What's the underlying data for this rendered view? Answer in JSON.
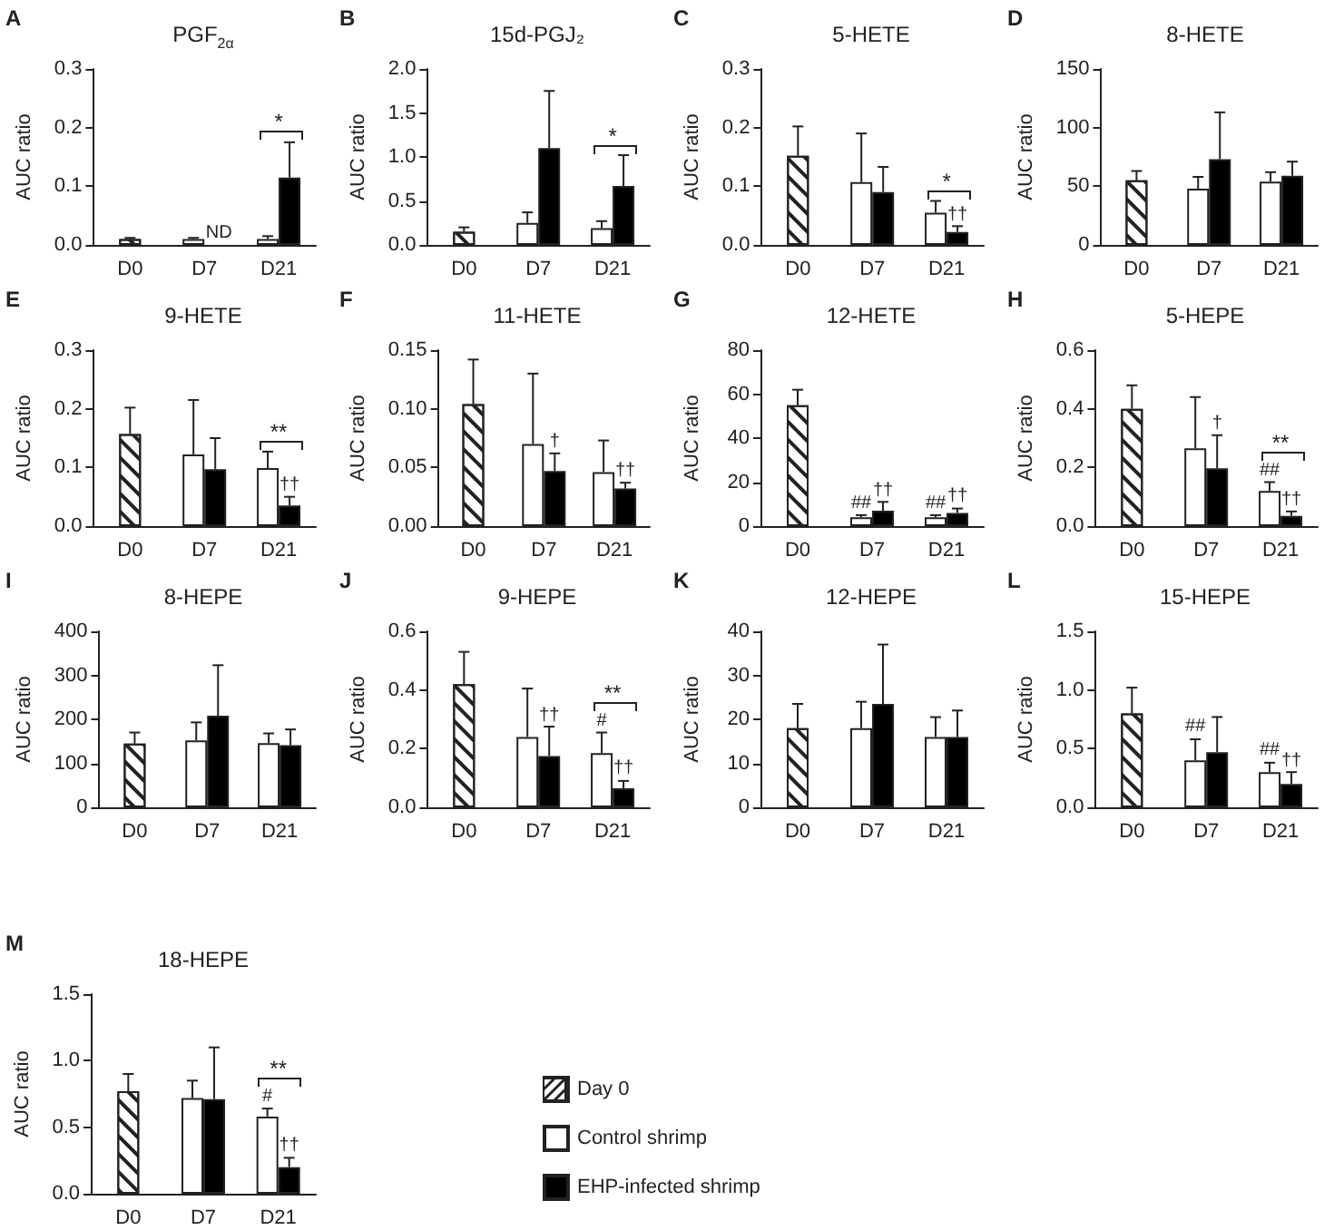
{
  "chart_data": [
    {
      "type": "bar",
      "title": "PGF$_{2α}$",
      "ylabel": "AUC ratio",
      "annotations": [
        "A",
        "*"
      ],
      "categories": [
        "D0",
        "D7",
        "D21"
      ],
      "ylim": [
        0,
        0.3
      ],
      "yticks": [
        {
          "value": 0,
          "label": "0.0"
        },
        0.1,
        0.2,
        0.3
      ],
      "series": [
        {
          "color": "#ffffff",
          "values": [
            0.01,
            null,
            null
          ],
          "errors": [
            [
              0.01,
              0.012
            ],
            null,
            null
          ]
        },
        {
          "color": "#ffffff",
          "values": [
            null,
            0.01,
            0.01
          ],
          "errors": [
            null,
            [
              0.01,
              0.012
            ],
            [
              0.01,
              0.015
            ]
          ]
        },
        {
          "color": "#000000",
          "values": [
            null,
            null,
            0.115
          ],
          "errors": [
            null,
            null,
            [
              0.115,
              0.175
            ]
          ],
          "value_labels": [
            null,
            "ND",
            null
          ]
        }
      ]
    },
    {
      "type": "bar",
      "title": "15d-PGJ₂",
      "ylabel": "AUC ratio",
      "annotations": [
        "B",
        "*"
      ],
      "categories": [
        "D0",
        "D7",
        "D21"
      ],
      "ylim": [
        0,
        2
      ],
      "yticks": [
        {
          "value": 0,
          "label": "0.0"
        },
        0.5,
        {
          "value": 1,
          "label": "1.0"
        },
        1.5,
        {
          "value": 2,
          "label": "2.0"
        }
      ],
      "series": [
        {
          "color": "#ffffff",
          "values": [
            0.15,
            null,
            null
          ],
          "errors": [
            [
              0.15,
              0.2
            ],
            null,
            null
          ]
        },
        {
          "color": "#ffffff",
          "values": [
            null,
            0.25,
            0.19
          ],
          "errors": [
            null,
            [
              0.25,
              0.37
            ],
            [
              0.19,
              0.27
            ]
          ]
        },
        {
          "color": "#000000",
          "values": [
            null,
            1.1,
            0.67
          ],
          "errors": [
            null,
            [
              1.1,
              1.75
            ],
            [
              0.67,
              1.02
            ]
          ]
        }
      ]
    },
    {
      "type": "bar",
      "title": "5-HETE",
      "ylabel": "AUC ratio",
      "annotations": [
        "C",
        "*"
      ],
      "categories": [
        "D0",
        "D7",
        "D21"
      ],
      "ylim": [
        0,
        0.3
      ],
      "yticks": [
        {
          "value": 0,
          "label": "0.0"
        },
        0.1,
        0.2,
        0.3
      ],
      "series": [
        {
          "color": "#ffffff",
          "values": [
            0.152,
            null,
            null
          ],
          "errors": [
            [
              0.152,
              0.202
            ],
            null,
            null
          ]
        },
        {
          "color": "#ffffff",
          "values": [
            null,
            0.107,
            0.055
          ],
          "errors": [
            null,
            [
              0.107,
              0.19
            ],
            [
              0.055,
              0.075
            ]
          ]
        },
        {
          "color": "#000000",
          "values": [
            null,
            0.09,
            0.022
          ],
          "errors": [
            null,
            [
              0.09,
              0.133
            ],
            [
              0.022,
              0.032
            ]
          ],
          "value_labels": [
            null,
            null,
            "††"
          ]
        }
      ]
    },
    {
      "type": "bar",
      "title": "8-HETE",
      "ylabel": "AUC ratio",
      "annotations": [
        "D"
      ],
      "categories": [
        "D0",
        "D7",
        "D21"
      ],
      "ylim": [
        0,
        150
      ],
      "yticks": [
        0,
        50,
        100,
        150
      ],
      "series": [
        {
          "color": "#ffffff",
          "values": [
            55,
            null,
            null
          ],
          "errors": [
            [
              55,
              63
            ],
            null,
            null
          ]
        },
        {
          "color": "#ffffff",
          "values": [
            null,
            48,
            54
          ],
          "errors": [
            null,
            [
              48,
              58
            ],
            [
              54,
              62
            ]
          ]
        },
        {
          "color": "#000000",
          "values": [
            null,
            73,
            59
          ],
          "errors": [
            null,
            [
              73,
              113
            ],
            [
              59,
              71
            ]
          ]
        }
      ]
    },
    {
      "type": "bar",
      "title": "9-HETE",
      "ylabel": "AUC ratio",
      "annotations": [
        "E",
        "**"
      ],
      "categories": [
        "D0",
        "D7",
        "D21"
      ],
      "ylim": [
        0,
        0.3
      ],
      "yticks": [
        {
          "value": 0,
          "label": "0.0"
        },
        0.1,
        0.2,
        0.3
      ],
      "series": [
        {
          "color": "#ffffff",
          "values": [
            0.157,
            null,
            null
          ],
          "errors": [
            [
              0.157,
              0.202
            ],
            null,
            null
          ]
        },
        {
          "color": "#ffffff",
          "values": [
            null,
            0.122,
            0.099
          ],
          "errors": [
            null,
            [
              0.122,
              0.215
            ],
            [
              0.099,
              0.127
            ]
          ]
        },
        {
          "color": "#000000",
          "values": [
            null,
            0.097,
            0.035
          ],
          "errors": [
            null,
            [
              0.097,
              0.15
            ],
            [
              0.035,
              0.05
            ]
          ],
          "value_labels": [
            null,
            null,
            "††"
          ]
        }
      ]
    },
    {
      "type": "bar",
      "title": "11-HETE",
      "ylabel": "AUC ratio",
      "annotations": [
        "F"
      ],
      "categories": [
        "D0",
        "D7",
        "D21"
      ],
      "ylim": [
        0,
        0.15
      ],
      "yticks": [
        {
          "value": 0,
          "label": "0.00"
        },
        0.05,
        {
          "value": 0.1,
          "label": "0.10"
        },
        0.15
      ],
      "series": [
        {
          "color": "#ffffff",
          "values": [
            0.104,
            null,
            null
          ],
          "errors": [
            [
              0.104,
              0.142
            ],
            null,
            null
          ]
        },
        {
          "color": "#ffffff",
          "values": [
            null,
            0.07,
            0.046
          ],
          "errors": [
            null,
            [
              0.07,
              0.13
            ],
            [
              0.046,
              0.073
            ]
          ]
        },
        {
          "color": "#000000",
          "values": [
            null,
            0.047,
            0.032
          ],
          "errors": [
            null,
            [
              0.047,
              0.062
            ],
            [
              0.032,
              0.037
            ]
          ],
          "value_labels": [
            null,
            "†",
            "††"
          ]
        }
      ]
    },
    {
      "type": "bar",
      "title": "12-HETE",
      "ylabel": "AUC ratio",
      "annotations": [
        "G"
      ],
      "categories": [
        "D0",
        "D7",
        "D21"
      ],
      "ylim": [
        0,
        80
      ],
      "yticks": [
        0,
        20,
        40,
        60,
        80
      ],
      "series": [
        {
          "color": "#ffffff",
          "values": [
            55,
            null,
            null
          ],
          "errors": [
            [
              55,
              62
            ],
            null,
            null
          ]
        },
        {
          "color": "#ffffff",
          "values": [
            null,
            4,
            4
          ],
          "errors": [
            null,
            [
              4,
              5
            ],
            [
              4,
              5
            ]
          ],
          "value_labels": [
            null,
            "##",
            "##"
          ]
        },
        {
          "color": "#000000",
          "values": [
            null,
            7,
            6
          ],
          "errors": [
            null,
            [
              7,
              11
            ],
            [
              6,
              8
            ]
          ],
          "value_labels": [
            null,
            "††",
            "††"
          ]
        }
      ]
    },
    {
      "type": "bar",
      "title": "5-HEPE",
      "ylabel": "AUC ratio",
      "annotations": [
        "H",
        "**"
      ],
      "categories": [
        "D0",
        "D7",
        "D21"
      ],
      "ylim": [
        0,
        0.6
      ],
      "yticks": [
        {
          "value": 0,
          "label": "0.0"
        },
        0.2,
        0.4,
        0.6
      ],
      "series": [
        {
          "color": "#ffffff",
          "values": [
            0.4,
            null,
            null
          ],
          "errors": [
            [
              0.4,
              0.48
            ],
            null,
            null
          ]
        },
        {
          "color": "#ffffff",
          "values": [
            null,
            0.265,
            0.12
          ],
          "errors": [
            null,
            [
              0.265,
              0.44
            ],
            [
              0.12,
              0.15
            ]
          ],
          "value_labels": [
            null,
            null,
            "##"
          ]
        },
        {
          "color": "#000000",
          "values": [
            null,
            0.197,
            0.035
          ],
          "errors": [
            null,
            [
              0.197,
              0.31
            ],
            [
              0.035,
              0.05
            ]
          ],
          "value_labels": [
            null,
            "†",
            "††"
          ]
        }
      ]
    },
    {
      "type": "bar",
      "title": "8-HEPE",
      "ylabel": "AUC ratio",
      "annotations": [
        "I"
      ],
      "categories": [
        "D0",
        "D7",
        "D21"
      ],
      "ylim": [
        0,
        400
      ],
      "yticks": [
        0,
        100,
        200,
        300,
        400
      ],
      "series": [
        {
          "color": "#ffffff",
          "values": [
            145,
            null,
            null
          ],
          "errors": [
            [
              145,
              170
            ],
            null,
            null
          ]
        },
        {
          "color": "#ffffff",
          "values": [
            null,
            152,
            146
          ],
          "errors": [
            null,
            [
              152,
              193
            ],
            [
              146,
              168
            ]
          ]
        },
        {
          "color": "#000000",
          "values": [
            null,
            208,
            141
          ],
          "errors": [
            null,
            [
              208,
              323
            ],
            [
              141,
              177
            ]
          ]
        }
      ]
    },
    {
      "type": "bar",
      "title": "9-HEPE",
      "ylabel": "AUC ratio",
      "annotations": [
        "J",
        "**"
      ],
      "categories": [
        "D0",
        "D7",
        "D21"
      ],
      "ylim": [
        0,
        0.6
      ],
      "yticks": [
        {
          "value": 0,
          "label": "0.0"
        },
        0.2,
        0.4,
        0.6
      ],
      "series": [
        {
          "color": "#ffffff",
          "values": [
            0.42,
            null,
            null
          ],
          "errors": [
            [
              0.42,
              0.53
            ],
            null,
            null
          ]
        },
        {
          "color": "#ffffff",
          "values": [
            null,
            0.24,
            0.185
          ],
          "errors": [
            null,
            [
              0.24,
              0.405
            ],
            [
              0.185,
              0.255
            ]
          ],
          "value_labels": [
            null,
            null,
            "#"
          ]
        },
        {
          "color": "#000000",
          "values": [
            null,
            0.175,
            0.065
          ],
          "errors": [
            null,
            [
              0.175,
              0.275
            ],
            [
              0.065,
              0.09
            ]
          ],
          "value_labels": [
            null,
            "††",
            "††"
          ]
        }
      ]
    },
    {
      "type": "bar",
      "title": "12-HEPE",
      "ylabel": "AUC ratio",
      "annotations": [
        "K"
      ],
      "categories": [
        "D0",
        "D7",
        "D21"
      ],
      "ylim": [
        0,
        40
      ],
      "yticks": [
        0,
        10,
        20,
        30,
        40
      ],
      "series": [
        {
          "color": "#ffffff",
          "values": [
            18,
            null,
            null
          ],
          "errors": [
            [
              18,
              23.5
            ],
            null,
            null
          ]
        },
        {
          "color": "#ffffff",
          "values": [
            null,
            18,
            16
          ],
          "errors": [
            null,
            [
              18,
              24
            ],
            [
              16,
              20.5
            ]
          ]
        },
        {
          "color": "#000000",
          "values": [
            null,
            23.5,
            16
          ],
          "errors": [
            null,
            [
              23.5,
              37
            ],
            [
              16,
              22
            ]
          ]
        }
      ]
    },
    {
      "type": "bar",
      "title": "15-HEPE",
      "ylabel": "AUC ratio",
      "annotations": [
        "L"
      ],
      "categories": [
        "D0",
        "D7",
        "D21"
      ],
      "ylim": [
        0,
        1.5
      ],
      "yticks": [
        {
          "value": 0,
          "label": "0.0"
        },
        0.5,
        {
          "value": 1,
          "label": "1.0"
        },
        1.5
      ],
      "series": [
        {
          "color": "#ffffff",
          "values": [
            0.8,
            null,
            null
          ],
          "errors": [
            [
              0.8,
              1.02
            ],
            null,
            null
          ]
        },
        {
          "color": "#ffffff",
          "values": [
            null,
            0.4,
            0.3
          ],
          "errors": [
            null,
            [
              0.4,
              0.58
            ],
            [
              0.3,
              0.38
            ]
          ],
          "value_labels": [
            null,
            "##",
            "##"
          ]
        },
        {
          "color": "#000000",
          "values": [
            null,
            0.47,
            0.2
          ],
          "errors": [
            null,
            [
              0.47,
              0.77
            ],
            [
              0.2,
              0.3
            ]
          ],
          "value_labels": [
            null,
            null,
            "††"
          ]
        }
      ]
    },
    {
      "type": "bar",
      "title": "18-HEPE",
      "ylabel": "AUC ratio",
      "annotations": [
        "M",
        "**"
      ],
      "categories": [
        "D0",
        "D7",
        "D21"
      ],
      "ylim": [
        0,
        1.5
      ],
      "yticks": [
        {
          "value": 0,
          "label": "0.0"
        },
        0.5,
        {
          "value": 1,
          "label": "1.0"
        },
        1.5
      ],
      "legend": "right",
      "series": [
        {
          "name": "Day 0",
          "color": "#ffffff",
          "values": [
            0.77,
            null,
            null
          ],
          "errors": [
            [
              0.77,
              0.9
            ],
            null,
            null
          ]
        },
        {
          "name": "Control shrimp",
          "color": "#ffffff",
          "values": [
            null,
            0.72,
            0.58
          ],
          "errors": [
            null,
            [
              0.72,
              0.85
            ],
            [
              0.58,
              0.64
            ]
          ],
          "value_labels": [
            null,
            null,
            "#"
          ]
        },
        {
          "name": "EHP-infected shrimp",
          "color": "#000000",
          "values": [
            null,
            0.71,
            0.2
          ],
          "errors": [
            null,
            [
              0.71,
              1.1
            ],
            [
              0.2,
              0.27
            ]
          ],
          "value_labels": [
            null,
            null,
            "††"
          ]
        }
      ]
    }
  ]
}
